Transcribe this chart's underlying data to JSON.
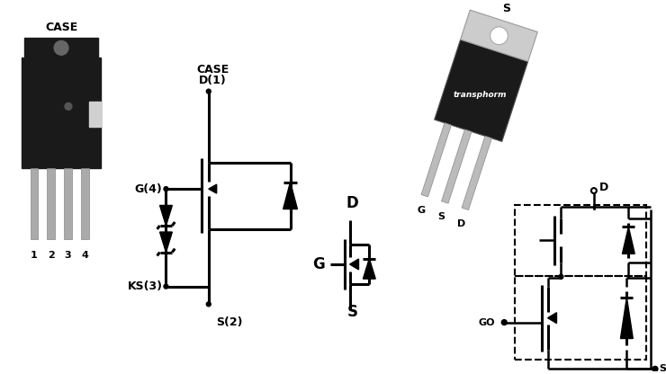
{
  "bg_color": "#ffffff",
  "figsize": [
    7.4,
    4.16
  ],
  "dpi": 100,
  "labels": {
    "case1": "CASE",
    "case2": "CASE",
    "d1": "D(1)",
    "g4": "G(4)",
    "ks3": "KS(3)",
    "s2": "S(2)",
    "s_top": "S",
    "g_bottom": "G",
    "s_bottom": "S",
    "d_bottom": "D",
    "d_center": "D",
    "g_center": "G",
    "s_center": "S",
    "d_right": "D",
    "g_right": "GO",
    "s_right": "S",
    "transphorm": "transphorm",
    "pin1": "1",
    "pin2": "2",
    "pin3": "3",
    "pin4": "4"
  }
}
